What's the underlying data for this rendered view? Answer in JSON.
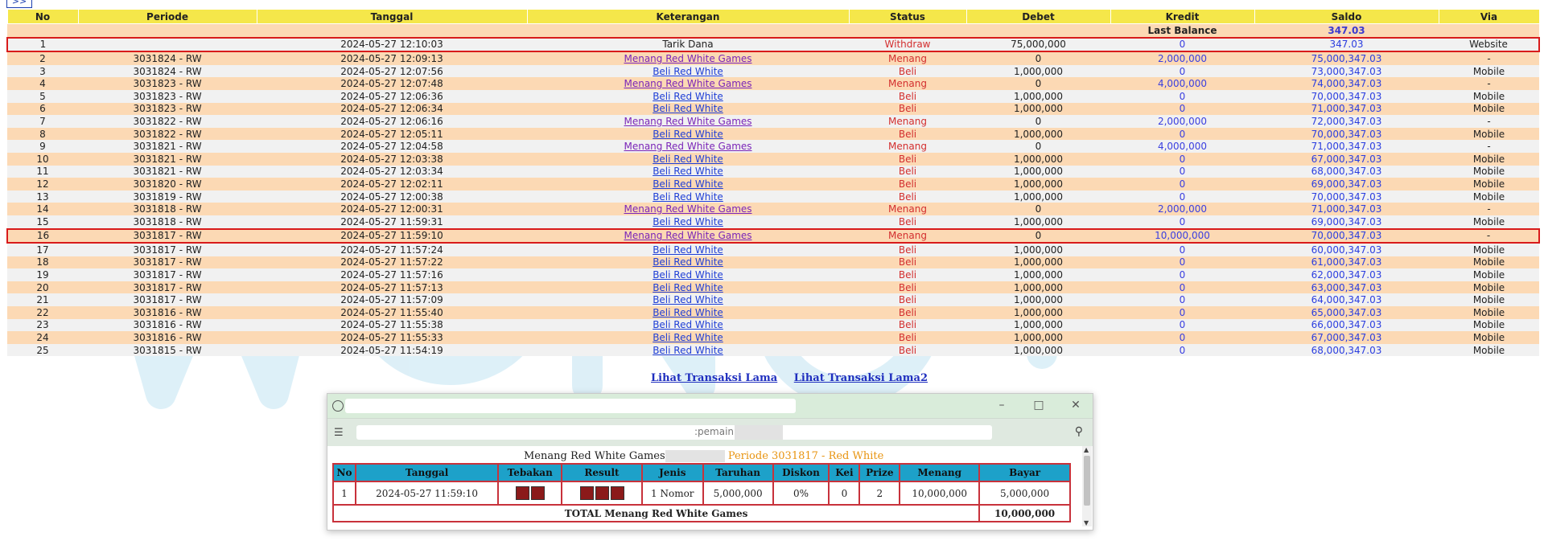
{
  "nav": {
    "arrow_label": ">>"
  },
  "columns": [
    "No",
    "Periode",
    "Tanggal",
    "Keterangan",
    "Status",
    "Debet",
    "Kredit",
    "Saldo",
    "Via"
  ],
  "last_balance": {
    "label": "Last Balance",
    "value": "347.03"
  },
  "rows": [
    {
      "no": "1",
      "periode": "",
      "tanggal": "2024-05-27 12:10:03",
      "keterangan": "Tarik Dana",
      "status": "Withdraw",
      "debet": "75,000,000",
      "kredit": "0",
      "saldo": "347.03",
      "via": "Website",
      "highlight": true,
      "link": "none"
    },
    {
      "no": "2",
      "periode": "3031824 - RW",
      "tanggal": "2024-05-27 12:09:13",
      "keterangan": "Menang Red White Games",
      "status": "Menang",
      "debet": "0",
      "kredit": "2,000,000",
      "saldo": "75,000,347.03",
      "via": "-",
      "link": "menang"
    },
    {
      "no": "3",
      "periode": "3031824 - RW",
      "tanggal": "2024-05-27 12:07:56",
      "keterangan": "Beli Red White",
      "status": "Beli",
      "debet": "1,000,000",
      "kredit": "0",
      "saldo": "73,000,347.03",
      "via": "Mobile",
      "link": "beli"
    },
    {
      "no": "4",
      "periode": "3031823 - RW",
      "tanggal": "2024-05-27 12:07:48",
      "keterangan": "Menang Red White Games",
      "status": "Menang",
      "debet": "0",
      "kredit": "4,000,000",
      "saldo": "74,000,347.03",
      "via": "-",
      "link": "menang"
    },
    {
      "no": "5",
      "periode": "3031823 - RW",
      "tanggal": "2024-05-27 12:06:36",
      "keterangan": "Beli Red White",
      "status": "Beli",
      "debet": "1,000,000",
      "kredit": "0",
      "saldo": "70,000,347.03",
      "via": "Mobile",
      "link": "beli"
    },
    {
      "no": "6",
      "periode": "3031823 - RW",
      "tanggal": "2024-05-27 12:06:34",
      "keterangan": "Beli Red White",
      "status": "Beli",
      "debet": "1,000,000",
      "kredit": "0",
      "saldo": "71,000,347.03",
      "via": "Mobile",
      "link": "beli"
    },
    {
      "no": "7",
      "periode": "3031822 - RW",
      "tanggal": "2024-05-27 12:06:16",
      "keterangan": "Menang Red White Games",
      "status": "Menang",
      "debet": "0",
      "kredit": "2,000,000",
      "saldo": "72,000,347.03",
      "via": "-",
      "link": "menang"
    },
    {
      "no": "8",
      "periode": "3031822 - RW",
      "tanggal": "2024-05-27 12:05:11",
      "keterangan": "Beli Red White",
      "status": "Beli",
      "debet": "1,000,000",
      "kredit": "0",
      "saldo": "70,000,347.03",
      "via": "Mobile",
      "link": "beli"
    },
    {
      "no": "9",
      "periode": "3031821 - RW",
      "tanggal": "2024-05-27 12:04:58",
      "keterangan": "Menang Red White Games",
      "status": "Menang",
      "debet": "0",
      "kredit": "4,000,000",
      "saldo": "71,000,347.03",
      "via": "-",
      "link": "menang"
    },
    {
      "no": "10",
      "periode": "3031821 - RW",
      "tanggal": "2024-05-27 12:03:38",
      "keterangan": "Beli Red White",
      "status": "Beli",
      "debet": "1,000,000",
      "kredit": "0",
      "saldo": "67,000,347.03",
      "via": "Mobile",
      "link": "beli"
    },
    {
      "no": "11",
      "periode": "3031821 - RW",
      "tanggal": "2024-05-27 12:03:34",
      "keterangan": "Beli Red White",
      "status": "Beli",
      "debet": "1,000,000",
      "kredit": "0",
      "saldo": "68,000,347.03",
      "via": "Mobile",
      "link": "beli"
    },
    {
      "no": "12",
      "periode": "3031820 - RW",
      "tanggal": "2024-05-27 12:02:11",
      "keterangan": "Beli Red White",
      "status": "Beli",
      "debet": "1,000,000",
      "kredit": "0",
      "saldo": "69,000,347.03",
      "via": "Mobile",
      "link": "beli"
    },
    {
      "no": "13",
      "periode": "3031819 - RW",
      "tanggal": "2024-05-27 12:00:38",
      "keterangan": "Beli Red White",
      "status": "Beli",
      "debet": "1,000,000",
      "kredit": "0",
      "saldo": "70,000,347.03",
      "via": "Mobile",
      "link": "beli"
    },
    {
      "no": "14",
      "periode": "3031818 - RW",
      "tanggal": "2024-05-27 12:00:31",
      "keterangan": "Menang Red White Games",
      "status": "Menang",
      "debet": "0",
      "kredit": "2,000,000",
      "saldo": "71,000,347.03",
      "via": "-",
      "link": "menang"
    },
    {
      "no": "15",
      "periode": "3031818 - RW",
      "tanggal": "2024-05-27 11:59:31",
      "keterangan": "Beli Red White",
      "status": "Beli",
      "debet": "1,000,000",
      "kredit": "0",
      "saldo": "69,000,347.03",
      "via": "Mobile",
      "link": "beli"
    },
    {
      "no": "16",
      "periode": "3031817 - RW",
      "tanggal": "2024-05-27 11:59:10",
      "keterangan": "Menang Red White Games",
      "status": "Menang",
      "debet": "0",
      "kredit": "10,000,000",
      "saldo": "70,000,347.03",
      "via": "-",
      "highlight": true,
      "link": "menang"
    },
    {
      "no": "17",
      "periode": "3031817 - RW",
      "tanggal": "2024-05-27 11:57:24",
      "keterangan": "Beli Red White",
      "status": "Beli",
      "debet": "1,000,000",
      "kredit": "0",
      "saldo": "60,000,347.03",
      "via": "Mobile",
      "link": "beli"
    },
    {
      "no": "18",
      "periode": "3031817 - RW",
      "tanggal": "2024-05-27 11:57:22",
      "keterangan": "Beli Red White",
      "status": "Beli",
      "debet": "1,000,000",
      "kredit": "0",
      "saldo": "61,000,347.03",
      "via": "Mobile",
      "link": "beli"
    },
    {
      "no": "19",
      "periode": "3031817 - RW",
      "tanggal": "2024-05-27 11:57:16",
      "keterangan": "Beli Red White",
      "status": "Beli",
      "debet": "1,000,000",
      "kredit": "0",
      "saldo": "62,000,347.03",
      "via": "Mobile",
      "link": "beli"
    },
    {
      "no": "20",
      "periode": "3031817 - RW",
      "tanggal": "2024-05-27 11:57:13",
      "keterangan": "Beli Red White",
      "status": "Beli",
      "debet": "1,000,000",
      "kredit": "0",
      "saldo": "63,000,347.03",
      "via": "Mobile",
      "link": "beli"
    },
    {
      "no": "21",
      "periode": "3031817 - RW",
      "tanggal": "2024-05-27 11:57:09",
      "keterangan": "Beli Red White",
      "status": "Beli",
      "debet": "1,000,000",
      "kredit": "0",
      "saldo": "64,000,347.03",
      "via": "Mobile",
      "link": "beli"
    },
    {
      "no": "22",
      "periode": "3031816 - RW",
      "tanggal": "2024-05-27 11:55:40",
      "keterangan": "Beli Red White",
      "status": "Beli",
      "debet": "1,000,000",
      "kredit": "0",
      "saldo": "65,000,347.03",
      "via": "Mobile",
      "link": "beli"
    },
    {
      "no": "23",
      "periode": "3031816 - RW",
      "tanggal": "2024-05-27 11:55:38",
      "keterangan": "Beli Red White",
      "status": "Beli",
      "debet": "1,000,000",
      "kredit": "0",
      "saldo": "66,000,347.03",
      "via": "Mobile",
      "link": "beli"
    },
    {
      "no": "24",
      "periode": "3031816 - RW",
      "tanggal": "2024-05-27 11:55:33",
      "keterangan": "Beli Red White",
      "status": "Beli",
      "debet": "1,000,000",
      "kredit": "0",
      "saldo": "67,000,347.03",
      "via": "Mobile",
      "link": "beli"
    },
    {
      "no": "25",
      "periode": "3031815 - RW",
      "tanggal": "2024-05-27 11:54:19",
      "keterangan": "Beli Red White",
      "status": "Beli",
      "debet": "1,000,000",
      "kredit": "0",
      "saldo": "68,000,347.03",
      "via": "Mobile",
      "link": "beli"
    }
  ],
  "links": {
    "old1": "Lihat Transaksi Lama",
    "old2": "Lihat Transaksi Lama2"
  },
  "popup": {
    "url_fragment": ":pemain=",
    "heading": "Menang Red White Games",
    "periode": "Periode 3031817 - Red White",
    "columns": [
      "No",
      "Tanggal",
      "Tebakan",
      "Result",
      "Jenis",
      "Taruhan",
      "Diskon",
      "Kei",
      "Prize",
      "Menang",
      "Bayar"
    ],
    "row": {
      "no": "1",
      "tanggal": "2024-05-27 11:59:10",
      "tebakan_count": 2,
      "result_count": 3,
      "jenis": "1 Nomor",
      "taruhan": "5,000,000",
      "diskon": "0%",
      "kei": "0",
      "prize": "2",
      "menang": "10,000,000",
      "bayar": "5,000,000"
    },
    "total_label": "TOTAL  Menang Red White Games",
    "total_value": "10,000,000"
  },
  "colors": {
    "header": "#f5e74a",
    "row_even": "#fcd9b4",
    "row_odd": "#f1f1f1",
    "highlight": "#d81b1b",
    "status": "#d32f2f",
    "popup_header": "#1da1c9"
  }
}
